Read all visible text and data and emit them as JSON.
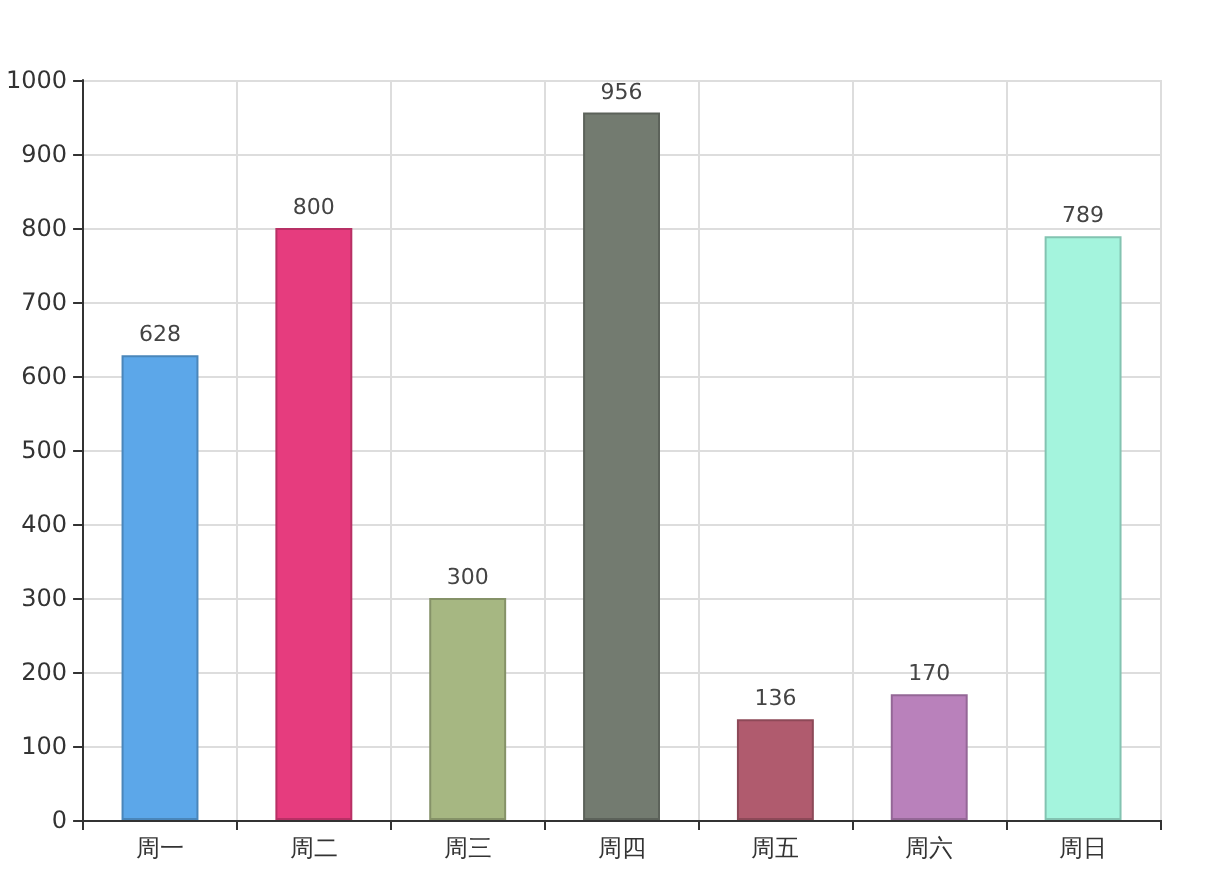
{
  "chart_data": {
    "type": "bar",
    "categories": [
      "周一",
      "周二",
      "周三",
      "周四",
      "周五",
      "周六",
      "周日"
    ],
    "values": [
      628,
      800,
      300,
      956,
      136,
      170,
      789
    ],
    "colors": [
      "#5ca7e9",
      "#e63c7e",
      "#a6b782",
      "#737b70",
      "#b05b6e",
      "#b981bb",
      "#a4f4dd"
    ],
    "ylim": [
      0,
      1000
    ],
    "yticks": [
      0,
      100,
      200,
      300,
      400,
      500,
      600,
      700,
      800,
      900,
      1000
    ],
    "grid": true,
    "data_labels": true
  }
}
